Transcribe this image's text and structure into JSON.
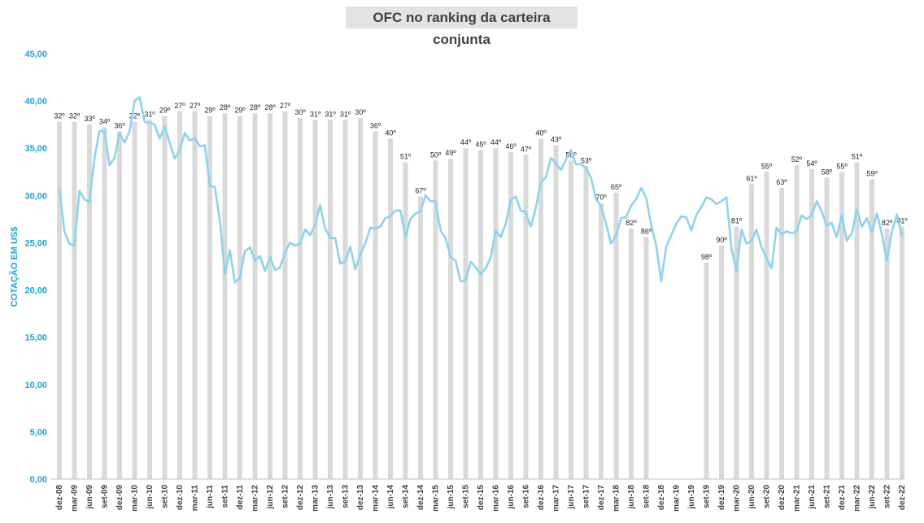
{
  "title": "OFC no ranking da carteira conjunta",
  "colors": {
    "bar": "#d9d9d9",
    "line": "#8dd3ee",
    "axis_text": "#1ba3d6"
  },
  "chart_data": {
    "type": "bar+line",
    "title": "OFC no ranking da carteira conjunta",
    "ylabel": "COTAÇÃO EM US$",
    "ylim": [
      0,
      45
    ],
    "yticks": [
      "0,00",
      "5,00",
      "10,00",
      "15,00",
      "20,00",
      "25,00",
      "30,00",
      "35,00",
      "40,00",
      "45,00"
    ],
    "grid": false,
    "categories": [
      "dez-08",
      "mar-09",
      "jun-09",
      "set-09",
      "dez-09",
      "mar-10",
      "jun-10",
      "set-10",
      "dez-10",
      "mar-11",
      "jun-11",
      "set-11",
      "dez-11",
      "mar-12",
      "jun-12",
      "set-12",
      "dez-12",
      "mar-13",
      "jun-13",
      "set-13",
      "dez-13",
      "mar-14",
      "jun-14",
      "set-14",
      "dez-14",
      "mar-15",
      "jun-15",
      "set-15",
      "dez-15",
      "mar-16",
      "jun-16",
      "set-16",
      "dez-16",
      "mar-17",
      "jun-17",
      "set-17",
      "dez-17",
      "mar-18",
      "jun-18",
      "set-18",
      "dez-18",
      "mar-19",
      "jun-19",
      "set-19",
      "dez-19",
      "mar-20",
      "jun-20",
      "set-20",
      "dez-20",
      "mar-21",
      "jun-21",
      "set-21",
      "dez-21",
      "mar-22",
      "jun-22",
      "set-22",
      "dez-22"
    ],
    "xtick_labels": [
      "dez-08",
      "mar-09",
      "jun-09",
      "set-09",
      "dez-09",
      "mar-10",
      "jun-10",
      "set-10",
      "dez-10",
      "mar-11",
      "jun-11",
      "set-11",
      "dez-11",
      "mar-12",
      "jun-12",
      "set-12",
      "dez-12",
      "mar-13",
      "jun-13",
      "set-13",
      "dez-13",
      "mar-14",
      "jun-14",
      "set-14",
      "dez-14",
      "mar-15",
      "jun-15",
      "set-15",
      "dez-15",
      "mar-16",
      "jun-16",
      "set-16",
      "dez-16",
      "mar-17",
      "jun-17",
      "set-17",
      "dez-17",
      "mar-18",
      "jun-18",
      "set-18",
      "dez-18",
      "mar-19",
      "jun-19",
      "set-19",
      "dez-19",
      "mar-20",
      "jun-20",
      "set-20",
      "dez-20",
      "mar-21",
      "jun-21",
      "set-21",
      "dez-21",
      "mar-22",
      "jun-22",
      "set-22",
      "dez-22"
    ],
    "ranking_bars": [
      {
        "label": "32º",
        "value": 37.8
      },
      {
        "label": "32º",
        "value": 37.8
      },
      {
        "label": "33º",
        "value": 37.5
      },
      {
        "label": "34º",
        "value": 37.2
      },
      {
        "label": "36º",
        "value": 36.8
      },
      {
        "label": "32º",
        "value": 37.8
      },
      {
        "label": "31º",
        "value": 38.0
      },
      {
        "label": "29º",
        "value": 38.4
      },
      {
        "label": "27º",
        "value": 38.9
      },
      {
        "label": "27º",
        "value": 38.9
      },
      {
        "label": "29º",
        "value": 38.4
      },
      {
        "label": "28º",
        "value": 38.7
      },
      {
        "label": "29º",
        "value": 38.4
      },
      {
        "label": "28º",
        "value": 38.7
      },
      {
        "label": "28º",
        "value": 38.7
      },
      {
        "label": "27º",
        "value": 38.9
      },
      {
        "label": "30º",
        "value": 38.2
      },
      {
        "label": "31º",
        "value": 38.0
      },
      {
        "label": "31º",
        "value": 38.0
      },
      {
        "label": "31º",
        "value": 38.0
      },
      {
        "label": "30º",
        "value": 38.2
      },
      {
        "label": "36º",
        "value": 36.8
      },
      {
        "label": "40º",
        "value": 36.0
      },
      {
        "label": "51º",
        "value": 33.5
      },
      {
        "label": "67º",
        "value": 29.9
      },
      {
        "label": "50º",
        "value": 33.7
      },
      {
        "label": "49º",
        "value": 33.9
      },
      {
        "label": "44º",
        "value": 35.0
      },
      {
        "label": "45º",
        "value": 34.8
      },
      {
        "label": "44º",
        "value": 35.0
      },
      {
        "label": "46º",
        "value": 34.6
      },
      {
        "label": "47º",
        "value": 34.3
      },
      {
        "label": "40º",
        "value": 36.0
      },
      {
        "label": "43º",
        "value": 35.3
      },
      {
        "label": "50º",
        "value": 33.7
      },
      {
        "label": "53º",
        "value": 33.1
      },
      {
        "label": "70º",
        "value": 29.2
      },
      {
        "label": "65º",
        "value": 30.3
      },
      {
        "label": "82º",
        "value": 26.5
      },
      {
        "label": "86º",
        "value": 25.6
      },
      null,
      null,
      null,
      {
        "label": "98º",
        "value": 22.9
      },
      {
        "label": "90º",
        "value": 24.7
      },
      {
        "label": "81º",
        "value": 26.7
      },
      {
        "label": "61º",
        "value": 31.2
      },
      {
        "label": "55º",
        "value": 32.5
      },
      {
        "label": "63º",
        "value": 30.8
      },
      {
        "label": "52º",
        "value": 33.2
      },
      {
        "label": "54º",
        "value": 32.8
      },
      {
        "label": "58º",
        "value": 31.9
      },
      {
        "label": "55º",
        "value": 32.5
      },
      {
        "label": "51º",
        "value": 33.5
      },
      {
        "label": "59º",
        "value": 31.7
      },
      {
        "label": "82º",
        "value": 26.5
      },
      {
        "label": "81º",
        "value": 26.7
      }
    ],
    "price_series": {
      "x_start": 0,
      "x_step": 0.3333,
      "values": [
        30.7,
        26.2,
        24.9,
        24.7,
        30.5,
        29.6,
        29.3,
        34.0,
        36.8,
        36.8,
        33.2,
        34.0,
        36.6,
        35.6,
        36.8,
        40.0,
        40.4,
        37.8,
        37.7,
        37.5,
        36.0,
        37.3,
        35.6,
        33.9,
        34.8,
        36.6,
        35.8,
        36.1,
        35.2,
        35.3,
        31.0,
        30.9,
        27.4,
        21.7,
        24.2,
        20.8,
        21.3,
        24.1,
        24.5,
        23.1,
        23.6,
        22.0,
        23.5,
        22.1,
        22.4,
        24.0,
        25.0,
        24.7,
        24.9,
        26.4,
        25.8,
        26.9,
        29.0,
        26.5,
        25.5,
        25.5,
        22.8,
        23.0,
        24.6,
        22.2,
        23.8,
        24.9,
        26.6,
        26.5,
        26.7,
        27.6,
        27.8,
        28.4,
        28.4,
        25.6,
        27.5,
        28.1,
        28.3,
        30.0,
        29.4,
        29.4,
        26.3,
        25.5,
        23.5,
        23.1,
        20.9,
        21.0,
        23.0,
        22.4,
        21.7,
        22.3,
        23.4,
        26.3,
        25.6,
        27.0,
        29.5,
        29.9,
        28.4,
        28.2,
        26.7,
        28.7,
        31.4,
        31.9,
        34.0,
        33.4,
        32.7,
        33.8,
        34.8,
        33.3,
        33.3,
        32.9,
        31.9,
        29.6,
        28.9,
        27.0,
        24.9,
        25.8,
        27.6,
        27.7,
        28.9,
        29.6,
        30.8,
        29.8,
        26.9,
        24.7,
        20.9,
        24.6,
        25.8,
        27.0,
        27.8,
        27.7,
        26.3,
        27.9,
        28.8,
        29.8,
        29.6,
        29.1,
        29.4,
        29.8,
        24.4,
        22.0,
        26.4,
        24.9,
        25.2,
        26.4,
        24.5,
        23.4,
        22.3,
        26.6,
        25.9,
        26.2,
        26.0,
        26.2,
        27.9,
        27.5,
        27.9,
        29.4,
        28.3,
        26.8,
        27.1,
        25.6,
        27.9,
        25.2,
        26.0,
        28.5,
        26.7,
        27.6,
        26.1,
        28.1,
        25.9,
        23.1,
        26.2,
        28.0,
        25.7
      ]
    }
  }
}
